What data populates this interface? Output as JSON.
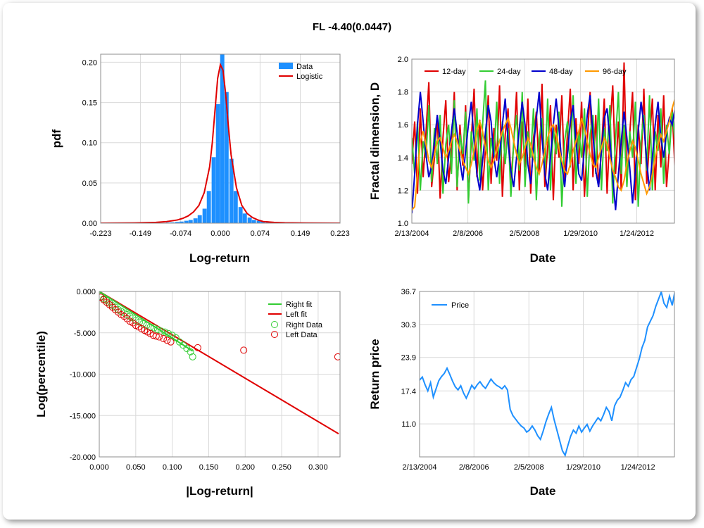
{
  "title": "FL -4.40(0.0447)",
  "chart_data": [
    {
      "type": "bar",
      "xlabel": "Log-return",
      "ylabel": "pdf",
      "xlim": [
        -0.223,
        0.223
      ],
      "ylim": [
        0,
        0.21
      ],
      "xticks": [
        "-0.223",
        "-0.149",
        "-0.074",
        "0.000",
        "0.074",
        "0.149",
        "0.223"
      ],
      "xtick_values": [
        -0.223,
        -0.149,
        -0.074,
        0,
        0.074,
        0.149,
        0.223
      ],
      "yticks": [
        "0.00",
        "0.05",
        "0.10",
        "0.15",
        "0.20"
      ],
      "ytick_values": [
        0,
        0.05,
        0.1,
        0.15,
        0.2
      ],
      "legend": {
        "position": "top-right",
        "items": [
          "Data",
          "Logistic"
        ]
      },
      "colors": {
        "bars": "#1e90ff",
        "fit": "#e00000"
      },
      "bin_width": 0.0085,
      "bins_x": [
        -0.114,
        -0.106,
        -0.097,
        -0.089,
        -0.08,
        -0.072,
        -0.063,
        -0.055,
        -0.046,
        -0.038,
        -0.029,
        -0.021,
        -0.012,
        -0.004,
        0.004,
        0.012,
        0.021,
        0.029,
        0.038,
        0.046,
        0.055,
        0.063,
        0.072,
        0.08,
        0.089,
        0.097,
        0.106,
        0.114
      ],
      "bins_y": [
        0.0003,
        0.0005,
        0.0008,
        0.001,
        0.0015,
        0.002,
        0.003,
        0.004,
        0.006,
        0.01,
        0.018,
        0.04,
        0.082,
        0.148,
        0.21,
        0.163,
        0.08,
        0.04,
        0.02,
        0.012,
        0.007,
        0.004,
        0.003,
        0.002,
        0.0015,
        0.001,
        0.0005,
        0.0003
      ],
      "fit_x": [
        -0.223,
        -0.16,
        -0.12,
        -0.1,
        -0.08,
        -0.07,
        -0.06,
        -0.05,
        -0.04,
        -0.03,
        -0.02,
        -0.015,
        -0.01,
        -0.005,
        0,
        0.005,
        0.01,
        0.015,
        0.02,
        0.03,
        0.04,
        0.05,
        0.06,
        0.07,
        0.08,
        0.1,
        0.12,
        0.16,
        0.223
      ],
      "fit_y": [
        0,
        0.0003,
        0.001,
        0.002,
        0.004,
        0.006,
        0.009,
        0.014,
        0.022,
        0.038,
        0.07,
        0.1,
        0.14,
        0.18,
        0.197,
        0.19,
        0.16,
        0.12,
        0.085,
        0.044,
        0.022,
        0.012,
        0.007,
        0.004,
        0.002,
        0.001,
        0.0005,
        0.0002,
        0
      ]
    },
    {
      "type": "line",
      "xlabel": "Date",
      "ylabel": "Fractal dimension, D",
      "xticks": [
        "2/13/2004",
        "2/8/2006",
        "2/5/2008",
        "1/29/2010",
        "1/24/2012"
      ],
      "xtick_values": [
        2004.12,
        2006.1,
        2008.1,
        2010.08,
        2012.07
      ],
      "xlim": [
        2004.12,
        2013.4
      ],
      "ylim": [
        1.0,
        2.0
      ],
      "yticks": [
        "1.0",
        "1.2",
        "1.4",
        "1.6",
        "1.8",
        "2.0"
      ],
      "ytick_values": [
        1.0,
        1.2,
        1.4,
        1.6,
        1.8,
        2.0
      ],
      "legend": {
        "position": "top-left",
        "items": [
          "12-day",
          "24-day",
          "48-day",
          "96-day"
        ]
      },
      "colors": [
        "#e00000",
        "#33cc33",
        "#0000cc",
        "#ff9900"
      ],
      "series": [
        {
          "name": "12-day",
          "x_start": 2004.12,
          "x_step": 0.1,
          "values": [
            1.36,
            1.62,
            1.18,
            1.7,
            1.28,
            1.55,
            1.86,
            1.22,
            1.4,
            1.66,
            1.15,
            1.52,
            1.75,
            1.25,
            1.44,
            1.8,
            1.2,
            1.6,
            1.35,
            1.72,
            1.14,
            1.5,
            1.82,
            1.28,
            1.63,
            1.2,
            1.45,
            1.78,
            1.24,
            1.58,
            1.38,
            1.84,
            1.16,
            1.54,
            1.7,
            1.26,
            1.48,
            1.8,
            1.2,
            1.62,
            1.34,
            1.76,
            1.18,
            1.52,
            1.68,
            1.3,
            1.85,
            1.22,
            1.46,
            1.72,
            1.14,
            1.6,
            1.4,
            1.78,
            1.25,
            1.55,
            1.82,
            1.2,
            1.64,
            1.36,
            1.74,
            1.16,
            1.5,
            1.8,
            1.28,
            1.66,
            1.22,
            1.44,
            1.76,
            1.18,
            1.58,
            1.84,
            1.3,
            1.62,
            1.2,
            1.98,
            1.26,
            1.54,
            1.8,
            1.14,
            1.6,
            1.36,
            1.82,
            1.24,
            1.5,
            1.76,
            1.2,
            1.66,
            1.34,
            1.78,
            1.22,
            1.45,
            1.7,
            1.32
          ]
        },
        {
          "name": "24-day",
          "x_start": 2004.12,
          "x_step": 0.1,
          "values": [
            1.52,
            1.3,
            1.62,
            1.2,
            1.5,
            1.4,
            1.72,
            1.25,
            1.58,
            1.36,
            1.66,
            1.18,
            1.48,
            1.6,
            1.3,
            1.75,
            1.22,
            1.54,
            1.42,
            1.68,
            1.12,
            1.56,
            1.38,
            1.7,
            1.26,
            1.6,
            1.87,
            1.2,
            1.52,
            1.4,
            1.74,
            1.24,
            1.62,
            1.36,
            1.58,
            1.16,
            1.5,
            1.66,
            1.32,
            1.8,
            1.22,
            1.56,
            1.4,
            1.7,
            1.14,
            1.52,
            1.64,
            1.3,
            1.76,
            1.2,
            1.58,
            1.42,
            1.68,
            1.1,
            1.5,
            1.62,
            1.34,
            1.78,
            1.24,
            1.56,
            1.4,
            1.7,
            1.16,
            1.54,
            1.66,
            1.3,
            1.76,
            1.2,
            1.58,
            1.44,
            1.72,
            1.12,
            1.52,
            1.8,
            1.3,
            1.6,
            1.22,
            1.56,
            1.4,
            1.74,
            1.1,
            1.5,
            1.66,
            1.32,
            1.78,
            1.2,
            1.56,
            1.44,
            1.7,
            1.24,
            1.6,
            1.42,
            1.68,
            1.5
          ]
        },
        {
          "name": "48-day",
          "x_start": 2004.12,
          "x_step": 0.1,
          "values": [
            1.06,
            1.3,
            1.6,
            1.8,
            1.62,
            1.42,
            1.28,
            1.35,
            1.5,
            1.66,
            1.5,
            1.32,
            1.24,
            1.4,
            1.56,
            1.7,
            1.55,
            1.38,
            1.26,
            1.44,
            1.6,
            1.74,
            1.5,
            1.3,
            1.2,
            1.38,
            1.55,
            1.72,
            1.62,
            1.4,
            1.28,
            1.42,
            1.6,
            1.76,
            1.5,
            1.32,
            1.22,
            1.4,
            1.58,
            1.74,
            1.6,
            1.36,
            1.24,
            1.46,
            1.64,
            1.8,
            1.52,
            1.3,
            1.2,
            1.4,
            1.6,
            1.76,
            1.58,
            1.36,
            1.22,
            1.42,
            1.62,
            1.72,
            1.5,
            1.3,
            1.26,
            1.46,
            1.66,
            1.78,
            1.54,
            1.32,
            1.22,
            1.44,
            1.64,
            1.7,
            1.5,
            1.28,
            1.08,
            1.3,
            1.5,
            1.68,
            1.52,
            1.34,
            1.12,
            1.32,
            1.56,
            1.74,
            1.6,
            1.38,
            1.2,
            1.4,
            1.6,
            1.74,
            1.52,
            1.4,
            1.56,
            1.64,
            1.6,
            1.7
          ]
        },
        {
          "name": "96-day",
          "x_start": 2004.12,
          "x_step": 0.1,
          "values": [
            1.08,
            1.1,
            1.3,
            1.5,
            1.56,
            1.48,
            1.38,
            1.34,
            1.42,
            1.5,
            1.52,
            1.46,
            1.4,
            1.44,
            1.5,
            1.54,
            1.5,
            1.44,
            1.38,
            1.34,
            1.3,
            1.36,
            1.44,
            1.56,
            1.62,
            1.56,
            1.46,
            1.38,
            1.34,
            1.38,
            1.44,
            1.5,
            1.56,
            1.6,
            1.64,
            1.58,
            1.5,
            1.42,
            1.36,
            1.4,
            1.46,
            1.52,
            1.48,
            1.4,
            1.34,
            1.3,
            1.36,
            1.44,
            1.52,
            1.58,
            1.6,
            1.54,
            1.46,
            1.38,
            1.32,
            1.3,
            1.36,
            1.44,
            1.5,
            1.56,
            1.64,
            1.58,
            1.5,
            1.42,
            1.36,
            1.34,
            1.4,
            1.46,
            1.52,
            1.48,
            1.4,
            1.32,
            1.28,
            1.22,
            1.2,
            1.26,
            1.36,
            1.44,
            1.5,
            1.46,
            1.38,
            1.3,
            1.24,
            1.18,
            1.22,
            1.3,
            1.4,
            1.48,
            1.54,
            1.5,
            1.56,
            1.62,
            1.7,
            1.76
          ]
        }
      ]
    },
    {
      "type": "scatter",
      "xlabel": "|Log-return|",
      "ylabel": "Log(percentile)",
      "xlim": [
        0,
        0.33
      ],
      "ylim": [
        -20,
        0
      ],
      "xticks": [
        "0.000",
        "0.050",
        "0.100",
        "0.150",
        "0.200",
        "0.250",
        "0.300"
      ],
      "xtick_values": [
        0,
        0.05,
        0.1,
        0.15,
        0.2,
        0.25,
        0.3
      ],
      "yticks": [
        "0.000",
        "-5.000",
        "-10.000",
        "-15.000",
        "-20.000"
      ],
      "ytick_values": [
        0,
        -5,
        -10,
        -15,
        -20
      ],
      "legend": {
        "position": "top-right",
        "items": [
          "Right fit",
          "Left fit",
          "Right Data",
          "Left Data"
        ]
      },
      "colors": {
        "right": "#33cc33",
        "left": "#e00000"
      },
      "right_fit": {
        "x": [
          0,
          0.128
        ],
        "y": [
          0,
          -7.2
        ]
      },
      "left_fit": {
        "x": [
          0,
          0.328
        ],
        "y": [
          0,
          -17.2
        ]
      },
      "right_data": {
        "x": [
          0.002,
          0.006,
          0.01,
          0.014,
          0.018,
          0.022,
          0.026,
          0.03,
          0.034,
          0.038,
          0.042,
          0.046,
          0.05,
          0.055,
          0.06,
          0.065,
          0.07,
          0.075,
          0.08,
          0.085,
          0.09,
          0.095,
          0.1,
          0.105,
          0.11,
          0.115,
          0.12,
          0.125,
          0.128
        ],
        "y": [
          -0.6,
          -0.9,
          -1.1,
          -1.4,
          -1.7,
          -1.9,
          -2.2,
          -2.4,
          -2.6,
          -2.8,
          -3.0,
          -3.2,
          -3.5,
          -3.7,
          -3.9,
          -4.1,
          -4.3,
          -4.4,
          -4.6,
          -4.8,
          -4.9,
          -5.1,
          -5.3,
          -5.6,
          -6.1,
          -6.5,
          -6.9,
          -7.3,
          -7.9
        ]
      },
      "left_data": {
        "x": [
          0.002,
          0.006,
          0.01,
          0.014,
          0.018,
          0.022,
          0.026,
          0.03,
          0.034,
          0.038,
          0.042,
          0.046,
          0.05,
          0.054,
          0.058,
          0.062,
          0.066,
          0.07,
          0.074,
          0.078,
          0.082,
          0.088,
          0.093,
          0.098,
          0.135,
          0.198,
          0.327
        ],
        "y": [
          -0.7,
          -1.0,
          -1.3,
          -1.6,
          -1.9,
          -2.2,
          -2.5,
          -2.8,
          -3.0,
          -3.3,
          -3.6,
          -3.8,
          -4.1,
          -4.3,
          -4.5,
          -4.7,
          -4.9,
          -5.1,
          -5.3,
          -5.4,
          -5.5,
          -5.7,
          -5.9,
          -6.1,
          -6.8,
          -7.1,
          -7.9
        ]
      }
    },
    {
      "type": "line",
      "xlabel": "Date",
      "ylabel": "Return price",
      "xticks": [
        "2/13/2004",
        "2/8/2006",
        "2/5/2008",
        "1/29/2010",
        "1/24/2012"
      ],
      "xtick_values": [
        2004.12,
        2006.1,
        2008.1,
        2010.08,
        2012.07
      ],
      "xlim": [
        2004.12,
        2013.4
      ],
      "ylim": [
        4.6,
        36.7
      ],
      "yticks": [
        "36.7",
        "30.3",
        "23.9",
        "17.4",
        "11.0"
      ],
      "ytick_values": [
        36.7,
        30.3,
        23.9,
        17.4,
        11.0
      ],
      "legend": {
        "position": "top-left",
        "items": [
          "Price"
        ]
      },
      "colors": [
        "#1e90ff"
      ],
      "series": [
        {
          "name": "Price",
          "x_start": 2004.12,
          "x_step": 0.1,
          "values": [
            19.5,
            20.1,
            18.6,
            17.4,
            19.0,
            16.2,
            17.8,
            19.4,
            20.2,
            20.8,
            21.8,
            20.6,
            19.3,
            18.2,
            17.6,
            18.4,
            17.0,
            16.0,
            17.2,
            18.5,
            17.8,
            18.6,
            19.2,
            18.4,
            17.9,
            18.8,
            19.7,
            19.0,
            18.5,
            18.2,
            17.8,
            18.4,
            17.6,
            13.8,
            12.6,
            11.9,
            11.2,
            10.6,
            10.2,
            9.4,
            9.8,
            10.6,
            9.8,
            8.7,
            8.0,
            9.6,
            11.4,
            12.9,
            14.2,
            11.8,
            9.8,
            7.8,
            5.8,
            4.9,
            6.8,
            8.6,
            9.8,
            9.2,
            10.6,
            9.4,
            10.2,
            10.9,
            9.6,
            10.6,
            11.4,
            12.2,
            11.6,
            12.8,
            14.2,
            13.4,
            11.6,
            14.5,
            15.6,
            16.2,
            17.5,
            19.0,
            18.3,
            19.6,
            20.2,
            21.9,
            23.6,
            25.8,
            27.2,
            29.8,
            30.9,
            32.0,
            33.8,
            35.2,
            36.6,
            34.4,
            33.6,
            35.8,
            34.0,
            36.8
          ]
        }
      ]
    }
  ]
}
